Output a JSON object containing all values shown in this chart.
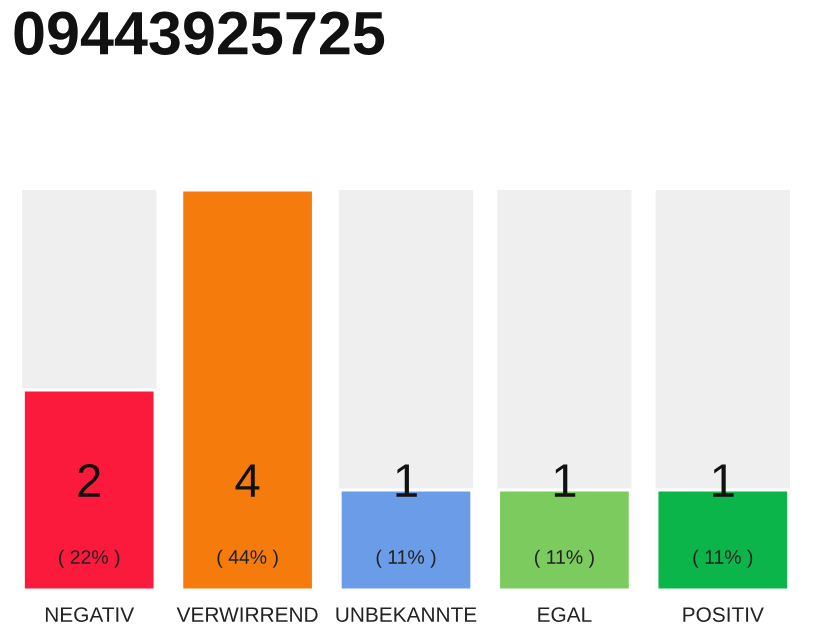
{
  "chart_data": {
    "type": "bar",
    "title": "09443925725",
    "categories": [
      "NEGATIV",
      "VERWIRREND",
      "UNBEKANNTE",
      "EGAL",
      "POSITIV"
    ],
    "values": [
      2,
      4,
      1,
      1,
      1
    ],
    "colors": [
      "#fc1a3c",
      "#f57c0c",
      "#6a9ce8",
      "#7ccb5e",
      "#0cb54a"
    ],
    "value_labels": [
      "2\n( 22% )",
      "4\n( 44% )",
      "1\n( 11% )",
      "1\n( 11% )",
      "1\n( 11% )"
    ],
    "grid": false,
    "legend": false
  }
}
